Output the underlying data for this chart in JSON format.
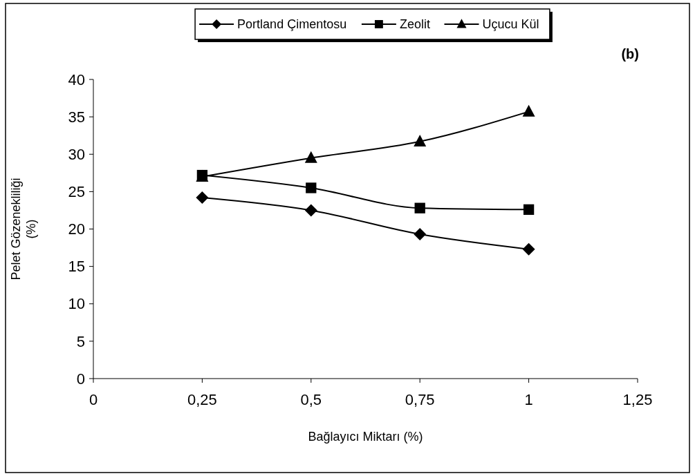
{
  "chart_data": {
    "type": "line",
    "xlabel": "Bağlayıcı Miktarı (%)",
    "ylabel": "Pelet Gözenekliliği\n(%)",
    "annotations": [
      "(b)"
    ],
    "x": [
      0.25,
      0.5,
      0.75,
      1
    ],
    "series": [
      {
        "name": "Portland Çimentosu",
        "color": "#000000",
        "marker": "diamond",
        "values": [
          24.2,
          22.5,
          19.3,
          17.3
        ]
      },
      {
        "name": "Zeolit",
        "color": "#000000",
        "marker": "square",
        "values": [
          27.2,
          25.5,
          22.8,
          22.6
        ]
      },
      {
        "name": "Uçucu Kül",
        "color": "#000000",
        "marker": "triangle",
        "values": [
          27.0,
          29.5,
          31.7,
          35.7
        ]
      }
    ],
    "xlim": [
      0,
      1.25
    ],
    "xticks": [
      0,
      {
        "value": 0.25,
        "label": "0,25"
      },
      {
        "value": 0.5,
        "label": "0,5"
      },
      {
        "value": 0.75,
        "label": "0,75"
      },
      1,
      {
        "value": 1.25,
        "label": "1,25"
      }
    ],
    "ylim": [
      0,
      40
    ],
    "yticks": [
      0,
      5,
      10,
      15,
      20,
      25,
      30,
      35,
      40
    ],
    "grid": false,
    "legend": "top",
    "line_style": "solid"
  }
}
